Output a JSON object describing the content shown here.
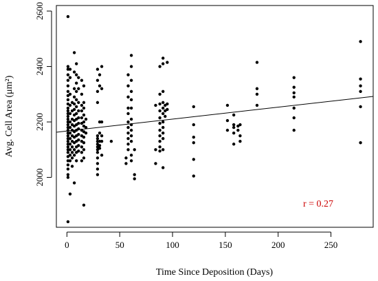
{
  "chart_data": {
    "type": "scatter",
    "xlabel": "Time Since Deposition (Days)",
    "ylabel": "Avg. Cell Area (μm²)",
    "xlim": [
      -10,
      290
    ],
    "ylim": [
      1820,
      2620
    ],
    "x_ticks": [
      0,
      50,
      100,
      150,
      200,
      250
    ],
    "y_ticks": [
      2000,
      2200,
      2400,
      2600
    ],
    "annotation": "r = 0.27",
    "annotation_color": "#cc0000",
    "point_color": "#000000",
    "grid": false,
    "trend_line": {
      "x": [
        -10,
        290
      ],
      "y": [
        2163,
        2292
      ]
    },
    "points": [
      [
        1,
        1840
      ],
      [
        1,
        2580
      ],
      [
        1,
        2400
      ],
      [
        1,
        2390
      ],
      [
        1,
        2370
      ],
      [
        1,
        2350
      ],
      [
        1,
        2330
      ],
      [
        1,
        2310
      ],
      [
        1,
        2295
      ],
      [
        1,
        2280
      ],
      [
        1,
        2265
      ],
      [
        1,
        2250
      ],
      [
        1,
        2240
      ],
      [
        1,
        2230
      ],
      [
        1,
        2220
      ],
      [
        1,
        2210
      ],
      [
        1,
        2200
      ],
      [
        1,
        2190
      ],
      [
        1,
        2180
      ],
      [
        1,
        2170
      ],
      [
        1,
        2160
      ],
      [
        1,
        2150
      ],
      [
        1,
        2140
      ],
      [
        1,
        2130
      ],
      [
        1,
        2120
      ],
      [
        1,
        2110
      ],
      [
        1,
        2100
      ],
      [
        1,
        2090
      ],
      [
        1,
        2075
      ],
      [
        1,
        2060
      ],
      [
        1,
        2045
      ],
      [
        1,
        2030
      ],
      [
        1,
        2010
      ],
      [
        1,
        2000
      ],
      [
        3,
        2390
      ],
      [
        3,
        2360
      ],
      [
        3,
        2300
      ],
      [
        3,
        2260
      ],
      [
        3,
        2230
      ],
      [
        3,
        2200
      ],
      [
        3,
        2180
      ],
      [
        3,
        2160
      ],
      [
        3,
        2140
      ],
      [
        3,
        2120
      ],
      [
        3,
        2100
      ],
      [
        3,
        2080
      ],
      [
        3,
        2060
      ],
      [
        3,
        1940
      ],
      [
        5,
        2270
      ],
      [
        5,
        2240
      ],
      [
        5,
        2210
      ],
      [
        5,
        2190
      ],
      [
        5,
        2170
      ],
      [
        5,
        2150
      ],
      [
        5,
        2130
      ],
      [
        5,
        2110
      ],
      [
        5,
        2090
      ],
      [
        5,
        2070
      ],
      [
        5,
        2040
      ],
      [
        7,
        2450
      ],
      [
        7,
        2380
      ],
      [
        7,
        2320
      ],
      [
        7,
        2290
      ],
      [
        7,
        2265
      ],
      [
        7,
        2245
      ],
      [
        7,
        2225
      ],
      [
        7,
        2205
      ],
      [
        7,
        2185
      ],
      [
        7,
        2165
      ],
      [
        7,
        2145
      ],
      [
        7,
        2125
      ],
      [
        7,
        2100
      ],
      [
        7,
        2080
      ],
      [
        7,
        1980
      ],
      [
        9,
        2410
      ],
      [
        9,
        2370
      ],
      [
        9,
        2340
      ],
      [
        9,
        2310
      ],
      [
        9,
        2280
      ],
      [
        9,
        2255
      ],
      [
        9,
        2230
      ],
      [
        9,
        2210
      ],
      [
        9,
        2190
      ],
      [
        9,
        2170
      ],
      [
        9,
        2150
      ],
      [
        9,
        2130
      ],
      [
        9,
        2110
      ],
      [
        9,
        2090
      ],
      [
        9,
        2060
      ],
      [
        11,
        2360
      ],
      [
        11,
        2320
      ],
      [
        11,
        2270
      ],
      [
        11,
        2240
      ],
      [
        11,
        2215
      ],
      [
        11,
        2195
      ],
      [
        11,
        2175
      ],
      [
        11,
        2155
      ],
      [
        11,
        2135
      ],
      [
        11,
        2115
      ],
      [
        11,
        2095
      ],
      [
        14,
        2350
      ],
      [
        14,
        2300
      ],
      [
        14,
        2260
      ],
      [
        14,
        2240
      ],
      [
        14,
        2215
      ],
      [
        14,
        2195
      ],
      [
        14,
        2170
      ],
      [
        14,
        2150
      ],
      [
        14,
        2130
      ],
      [
        14,
        2110
      ],
      [
        14,
        2090
      ],
      [
        14,
        2060
      ],
      [
        16,
        2330
      ],
      [
        16,
        2270
      ],
      [
        16,
        2250
      ],
      [
        16,
        2225
      ],
      [
        16,
        2200
      ],
      [
        16,
        2185
      ],
      [
        16,
        2165
      ],
      [
        16,
        2145
      ],
      [
        16,
        2125
      ],
      [
        16,
        2100
      ],
      [
        16,
        2070
      ],
      [
        16,
        1900
      ],
      [
        18,
        2210
      ],
      [
        18,
        2180
      ],
      [
        18,
        2160
      ],
      [
        29,
        2390
      ],
      [
        29,
        2350
      ],
      [
        29,
        2310
      ],
      [
        29,
        2270
      ],
      [
        29,
        2150
      ],
      [
        29,
        2140
      ],
      [
        29,
        2130
      ],
      [
        29,
        2120
      ],
      [
        29,
        2110
      ],
      [
        29,
        2100
      ],
      [
        29,
        2090
      ],
      [
        29,
        2070
      ],
      [
        29,
        2050
      ],
      [
        29,
        2030
      ],
      [
        29,
        2010
      ],
      [
        31,
        2370
      ],
      [
        31,
        2330
      ],
      [
        31,
        2200
      ],
      [
        31,
        2160
      ],
      [
        31,
        2130
      ],
      [
        31,
        2115
      ],
      [
        31,
        2105
      ],
      [
        33,
        2400
      ],
      [
        33,
        2320
      ],
      [
        33,
        2200
      ],
      [
        33,
        2150
      ],
      [
        33,
        2130
      ],
      [
        33,
        2080
      ],
      [
        42,
        2130
      ],
      [
        56,
        2070
      ],
      [
        56,
        2050
      ],
      [
        58,
        2370
      ],
      [
        58,
        2330
      ],
      [
        58,
        2290
      ],
      [
        58,
        2250
      ],
      [
        58,
        2230
      ],
      [
        58,
        2200
      ],
      [
        58,
        2180
      ],
      [
        58,
        2160
      ],
      [
        58,
        2140
      ],
      [
        58,
        2120
      ],
      [
        58,
        2100
      ],
      [
        61,
        2440
      ],
      [
        61,
        2400
      ],
      [
        61,
        2350
      ],
      [
        61,
        2310
      ],
      [
        61,
        2280
      ],
      [
        61,
        2250
      ],
      [
        61,
        2210
      ],
      [
        61,
        2190
      ],
      [
        61,
        2170
      ],
      [
        61,
        2150
      ],
      [
        61,
        2130
      ],
      [
        61,
        2080
      ],
      [
        61,
        2060
      ],
      [
        64,
        2100
      ],
      [
        64,
        2010
      ],
      [
        64,
        1995
      ],
      [
        84,
        2260
      ],
      [
        84,
        2100
      ],
      [
        84,
        2050
      ],
      [
        88,
        2400
      ],
      [
        88,
        2300
      ],
      [
        88,
        2265
      ],
      [
        88,
        2240
      ],
      [
        88,
        2215
      ],
      [
        88,
        2195
      ],
      [
        88,
        2170
      ],
      [
        88,
        2150
      ],
      [
        88,
        2130
      ],
      [
        88,
        2110
      ],
      [
        88,
        2095
      ],
      [
        91,
        2430
      ],
      [
        91,
        2410
      ],
      [
        91,
        2310
      ],
      [
        91,
        2270
      ],
      [
        91,
        2250
      ],
      [
        91,
        2230
      ],
      [
        91,
        2200
      ],
      [
        91,
        2180
      ],
      [
        91,
        2160
      ],
      [
        91,
        2140
      ],
      [
        91,
        2100
      ],
      [
        91,
        2035
      ],
      [
        93,
        2260
      ],
      [
        93,
        2240
      ],
      [
        93,
        2220
      ],
      [
        95,
        2415
      ],
      [
        95,
        2265
      ],
      [
        95,
        2245
      ],
      [
        120,
        2255
      ],
      [
        120,
        2190
      ],
      [
        120,
        2145
      ],
      [
        120,
        2125
      ],
      [
        120,
        2065
      ],
      [
        120,
        2005
      ],
      [
        152,
        2260
      ],
      [
        152,
        2205
      ],
      [
        152,
        2170
      ],
      [
        158,
        2225
      ],
      [
        158,
        2190
      ],
      [
        158,
        2180
      ],
      [
        158,
        2160
      ],
      [
        158,
        2120
      ],
      [
        162,
        2185
      ],
      [
        162,
        2170
      ],
      [
        164,
        2190
      ],
      [
        164,
        2150
      ],
      [
        164,
        2130
      ],
      [
        180,
        2415
      ],
      [
        180,
        2320
      ],
      [
        180,
        2300
      ],
      [
        180,
        2260
      ],
      [
        215,
        2360
      ],
      [
        215,
        2325
      ],
      [
        215,
        2305
      ],
      [
        215,
        2290
      ],
      [
        215,
        2250
      ],
      [
        215,
        2215
      ],
      [
        215,
        2170
      ],
      [
        278,
        2490
      ],
      [
        278,
        2355
      ],
      [
        278,
        2330
      ],
      [
        278,
        2310
      ],
      [
        278,
        2255
      ],
      [
        278,
        2125
      ]
    ]
  }
}
